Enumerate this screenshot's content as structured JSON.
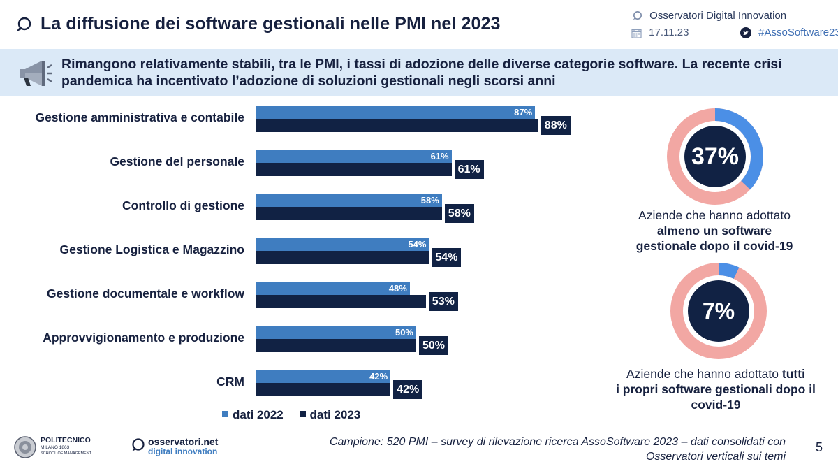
{
  "header": {
    "title": "La diffusione dei software gestionali nelle PMI nel 2023",
    "org": "Osservatori Digital Innovation",
    "date": "17.11.23",
    "hashtag": "#AssoSoftware23"
  },
  "banner": {
    "text": "Rimangono relativamente stabili, tra le PMI, i tassi di adozione delle diverse categorie software. La recente crisi pandemica ha incentivato l’adozione di soluzioni gestionali negli scorsi anni"
  },
  "chart_data": {
    "type": "bar",
    "orientation": "horizontal",
    "categories": [
      "Gestione amministrativa e contabile",
      "Gestione del personale",
      "Controllo di gestione",
      "Gestione Logistica e Magazzino",
      "Gestione documentale e workflow",
      "Approvvigionamento e produzione",
      "CRM"
    ],
    "series": [
      {
        "name": "dati 2022",
        "color": "#3f7dc0",
        "values": [
          87,
          61,
          58,
          54,
          48,
          50,
          42
        ],
        "labels": [
          "87%",
          "61%",
          "58%",
          "54%",
          "48%",
          "50%",
          "42%"
        ]
      },
      {
        "name": "dati 2023",
        "color": "#112244",
        "values": [
          88,
          61,
          58,
          54,
          53,
          50,
          42
        ],
        "labels": [
          "88%",
          "61%",
          "58%",
          "54%",
          "53%",
          "50%",
          "42%"
        ]
      }
    ],
    "xlim": [
      0,
      100
    ],
    "legend": "bottom"
  },
  "legend": {
    "s2022": "dati 2022",
    "s2023": "dati 2023"
  },
  "donuts": [
    {
      "value": 37,
      "label": "37%",
      "caption_pre": "Aziende  che hanno adottato",
      "caption_bold": "almeno un software gestionale dopo il covid-19",
      "color_fill": "#4b8fe6",
      "color_rest": "#f2a7a3",
      "color_center": "#112244"
    },
    {
      "value": 7,
      "label": "7%",
      "caption_pre": "Aziende che hanno adottato",
      "caption_bold_1": "tutti",
      "caption_bold_2": "i propri software gestionali dopo il covid-19",
      "color_fill": "#4b8fe6",
      "color_rest": "#f2a7a3",
      "color_center": "#112244"
    }
  ],
  "footer": {
    "logo1_l1": "POLITECNICO",
    "logo1_l2": "MILANO 1863",
    "logo1_l3": "SCHOOL OF MANAGEMENT",
    "logo2_l1": "osservatori.net",
    "logo2_l2": "digital innovation",
    "note": "Campione: 520 PMI – survey di rilevazione ricerca AssoSoftware 2023 – dati consolidati con Osservatori verticali sui temi",
    "page": "5"
  }
}
